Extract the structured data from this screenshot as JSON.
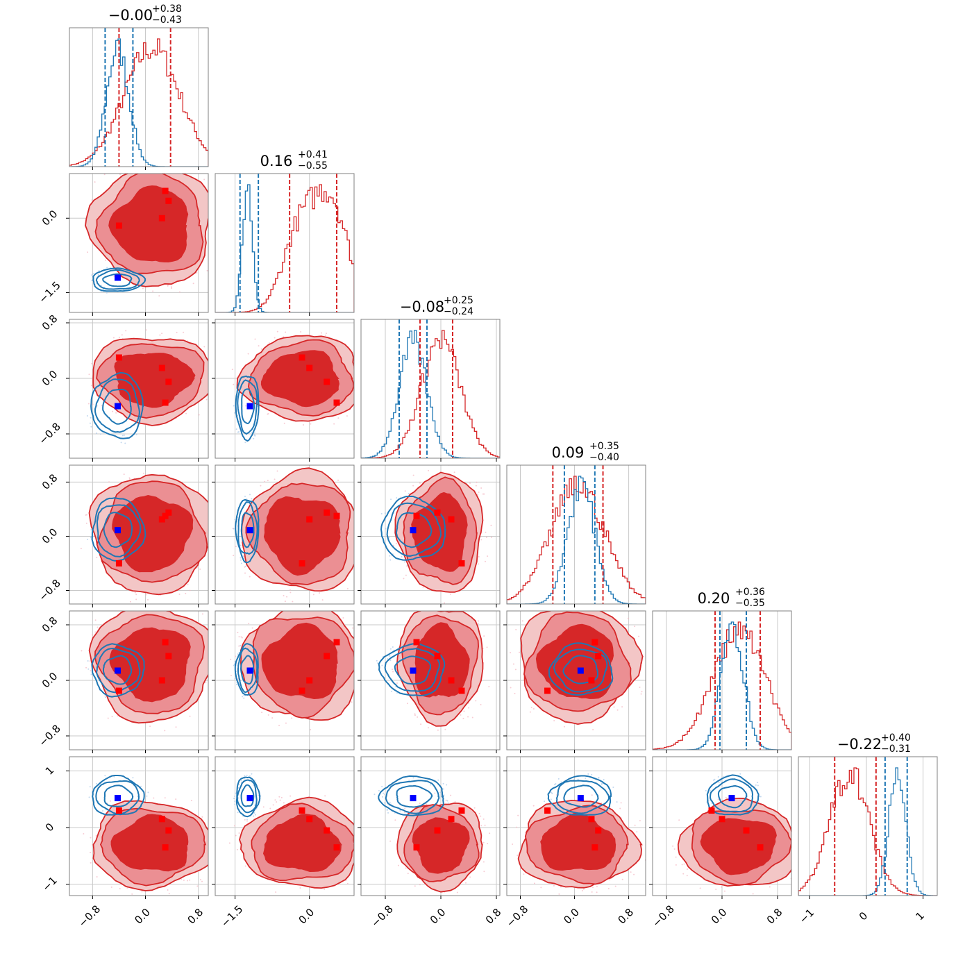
{
  "chart_data": {
    "type": "corner",
    "n_params": 6,
    "colors": {
      "posterior_a": "#d62728",
      "posterior_b": "#1f77b4",
      "marker_a": "#ff0000",
      "marker_b": "#0000ff"
    },
    "grid": true,
    "titles": [
      {
        "main": "−0.00",
        "sup": "+0.38",
        "sub": "−0.43"
      },
      {
        "main": "0.16",
        "sup": "+0.41",
        "sub": "−0.55"
      },
      {
        "main": "−0.08",
        "sup": "+0.25",
        "sub": "−0.24"
      },
      {
        "main": "0.09",
        "sup": "+0.35",
        "sub": "−0.40"
      },
      {
        "main": "0.20",
        "sup": "+0.36",
        "sub": "−0.35"
      },
      {
        "main": "−0.22",
        "sup": "+0.40",
        "sub": "−0.31"
      }
    ],
    "axis_ranges": [
      [
        -1.15,
        0.95
      ],
      [
        -1.9,
        0.9
      ],
      [
        -1.15,
        0.85
      ],
      [
        -1.0,
        1.05
      ],
      [
        -1.0,
        1.0
      ],
      [
        -1.2,
        1.25
      ]
    ],
    "x_ticks": [
      {
        "values": [
          -0.8,
          0.0,
          0.8
        ],
        "labels": [
          "−0.8",
          "0.0",
          "0.8"
        ]
      },
      {
        "values": [
          -1.5,
          0.0
        ],
        "labels": [
          "−1.5",
          "0.0"
        ]
      },
      {
        "values": [
          -0.8,
          0.0,
          0.8
        ],
        "labels": [
          "−0.8",
          "0.0",
          "0.8"
        ]
      },
      {
        "values": [
          -0.8,
          0.0,
          0.8
        ],
        "labels": [
          "−0.8",
          "0.0",
          "0.8"
        ]
      },
      {
        "values": [
          -0.8,
          0.0,
          0.8
        ],
        "labels": [
          "−0.8",
          "0.0",
          "0.8"
        ]
      },
      {
        "values": [
          -1,
          0,
          1
        ],
        "labels": [
          "−1",
          "0",
          "1"
        ]
      }
    ],
    "y_ticks": [
      null,
      {
        "values": [
          0.0,
          -1.5
        ],
        "labels": [
          "0.0",
          "−1.5"
        ]
      },
      {
        "values": [
          0.8,
          0.0,
          -0.8
        ],
        "labels": [
          "0.8",
          "0.0",
          "−0.8"
        ]
      },
      {
        "values": [
          0.8,
          0.0,
          -0.8
        ],
        "labels": [
          "0.8",
          "0.0",
          "−0.8"
        ]
      },
      {
        "values": [
          0.8,
          0.0,
          -0.8
        ],
        "labels": [
          "0.8",
          "0.0",
          "−0.8"
        ]
      },
      {
        "values": [
          1,
          0,
          -1
        ],
        "labels": [
          "1",
          "0",
          "−1"
        ]
      }
    ],
    "posterior_a": {
      "means": [
        [
          0.15,
          0.45
        ],
        [
          -0.1,
          0.75
        ],
        [
          0.1,
          0.3
        ],
        [
          -0.15,
          0.42
        ],
        [
          0.1,
          0.35
        ],
        [
          -0.25,
          0.35
        ]
      ],
      "dims": [
        {
          "mean": 0.1,
          "sd": 0.42,
          "q": [
            -0.4,
            0.38
          ]
        },
        {
          "mean": -0.15,
          "sd": 0.55,
          "q": [
            -0.4,
            0.55
          ]
        },
        {
          "mean": 0.0,
          "sd": 0.28,
          "q": [
            -0.3,
            0.17
          ]
        },
        {
          "mean": 0.05,
          "sd": 0.4,
          "q": [
            -0.32,
            0.42
          ]
        },
        {
          "mean": 0.25,
          "sd": 0.38,
          "q": [
            -0.1,
            0.55
          ]
        },
        {
          "mean": -0.3,
          "sd": 0.35,
          "q": [
            -0.56,
            0.17
          ]
        }
      ],
      "markers": [
        [
          -0.4,
          -0.15,
          0.3
        ],
        [
          0.25,
          0.0,
          0.15
        ],
        [
          0.3,
          0.55,
          -0.35
        ],
        [
          0.35,
          0.35,
          -0.05
        ]
      ]
    },
    "posterior_b": {
      "dims": [
        {
          "mean": -0.42,
          "sd": 0.17,
          "q": [
            -0.61,
            -0.19
          ]
        },
        {
          "mean": -1.25,
          "sd": 0.1,
          "q": [
            -1.4,
            -1.03
          ]
        },
        {
          "mean": -0.4,
          "sd": 0.2,
          "q": [
            -0.6,
            -0.2
          ]
        },
        {
          "mean": 0.1,
          "sd": 0.2,
          "q": [
            -0.15,
            0.3
          ]
        },
        {
          "mean": 0.15,
          "sd": 0.16,
          "q": [
            -0.03,
            0.35
          ]
        },
        {
          "mean": 0.55,
          "sd": 0.15,
          "q": [
            0.33,
            0.72
          ]
        }
      ],
      "markers": [
        [
          -0.42,
          -1.2,
          -0.4,
          0.09,
          0.14,
          0.52
        ]
      ]
    }
  }
}
